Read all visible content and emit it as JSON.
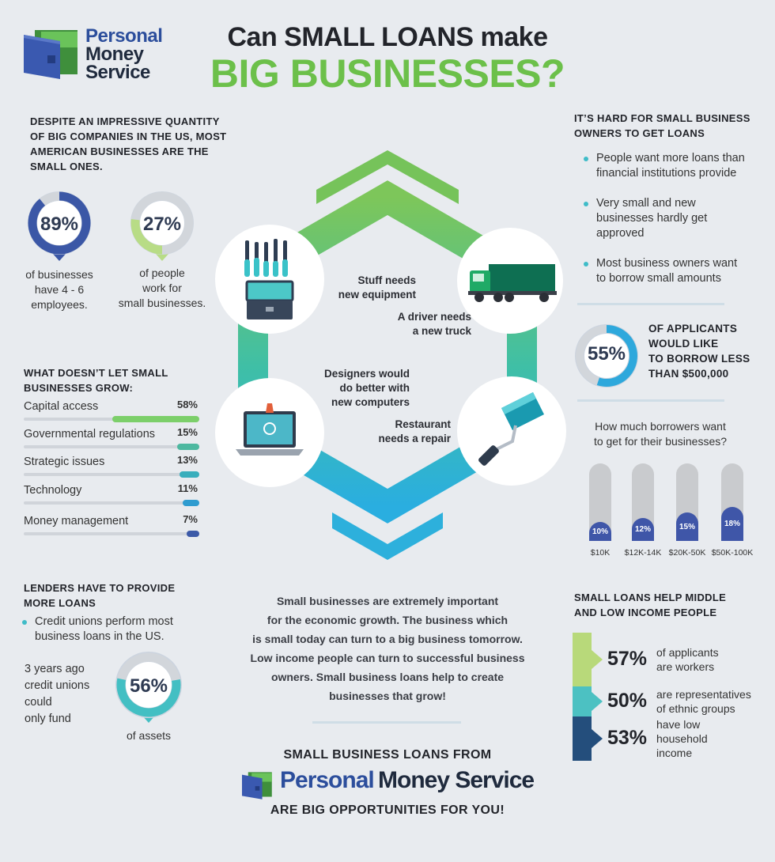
{
  "logo": {
    "line1": "Personal",
    "line2": "Money",
    "line3": "Service"
  },
  "title": {
    "line1": "Can SMALL LOANS make",
    "line2": "BIG BUSINESSES?"
  },
  "intro": {
    "heading": "DESPITE AN IMPRESSIVE QUANTITY OF BIG COMPANIES IN THE US, MOST AMERICAN BUSINESSES ARE THE SMALL ONES."
  },
  "stat89": {
    "value": "89%",
    "fraction": 0.89,
    "caption_l1": "of businesses",
    "caption_l2": "have 4 - 6",
    "caption_l3": "employees."
  },
  "stat27": {
    "value": "27%",
    "fraction": 0.27,
    "caption_l1": "of people",
    "caption_l2": "work for",
    "caption_l3": "small businesses."
  },
  "grow": {
    "heading": "WHAT DOESN’T LET SMALL BUSINESSES GROW:",
    "items": [
      {
        "label": "Capital access",
        "value": "58%",
        "fraction": 0.58,
        "color": "#7ccf6a"
      },
      {
        "label": "Governmental regulations",
        "value": "15%",
        "fraction": 0.15,
        "color": "#4db8a0"
      },
      {
        "label": "Strategic issues",
        "value": "13%",
        "fraction": 0.13,
        "color": "#39aebc"
      },
      {
        "label": "Technology",
        "value": "11%",
        "fraction": 0.11,
        "color": "#2f9cd0"
      },
      {
        "label": "Money management",
        "value": "7%",
        "fraction": 0.07,
        "color": "#3c5aa8"
      }
    ]
  },
  "lenders": {
    "heading_l1": "LENDERS HAVE TO PROVIDE",
    "heading_l2": "MORE LOANS",
    "bullet_l1": "Credit unions perform most",
    "bullet_l2": "business loans in the US.",
    "side_l1": "3 years ago",
    "side_l2": "credit unions",
    "side_l3": "could",
    "side_l4": "only fund",
    "value": "56%",
    "fraction": 0.56,
    "caption": "of assets"
  },
  "hex": {
    "equipment_l1": "Stuff needs",
    "equipment_l2": "new equipment",
    "truck_l1": "A driver needs",
    "truck_l2": "a new truck",
    "designers_l1": "Designers would",
    "designers_l2": "do better with",
    "designers_l3": "new computers",
    "restaurant_l1": "Restaurant",
    "restaurant_l2": "needs a repair"
  },
  "body_text": [
    "Small businesses are extremely important",
    "for the economic growth. The business which",
    "is small today can turn to a big business tomorrow.",
    "Low income people can turn to successful business",
    "owners. Small business loans help to create",
    "businesses that grow!"
  ],
  "footer": {
    "line1": "SMALL BUSINESS LOANS FROM",
    "brand_a": "Personal",
    "brand_b": "Money Service",
    "line3": "ARE BIG OPPORTUNITIES FOR YOU!"
  },
  "hard": {
    "heading_l1": "IT’S HARD FOR SMALL BUSINESS",
    "heading_l2": "OWNERS TO GET LOANS",
    "b1_l1": "People want more loans than",
    "b1_l2": "financial institutions provide",
    "b2_l1": "Very small and new",
    "b2_l2": "businesses hardly get",
    "b2_l3": "approved",
    "b3_l1": "Most business owners want",
    "b3_l2": "to borrow small amounts"
  },
  "stat55": {
    "value": "55%",
    "fraction": 0.55,
    "t1": "OF APPLICANTS",
    "t2": "WOULD LIKE",
    "t3": "TO BORROW LESS",
    "t4": "THAN $500,000"
  },
  "borrow": {
    "q_l1": "How much borrowers want",
    "q_l2": "to get for their businesses?",
    "items": [
      {
        "label": "$10K",
        "value": "10%",
        "fraction": 0.1
      },
      {
        "label": "$12K-14K",
        "value": "12%",
        "fraction": 0.12
      },
      {
        "label": "$20K-50K",
        "value": "15%",
        "fraction": 0.15
      },
      {
        "label": "$50K-100K",
        "value": "18%",
        "fraction": 0.18
      }
    ]
  },
  "income": {
    "heading_l1": "SMALL LOANS HELP MIDDLE",
    "heading_l2": "AND LOW INCOME PEOPLE",
    "items": [
      {
        "value": "57%",
        "l1": "of applicants",
        "l2": "are workers",
        "l3": "",
        "color": "#b8d97a"
      },
      {
        "value": "50%",
        "l1": "are representatives",
        "l2": "of ethnic groups",
        "l3": "",
        "color": "#4cc1c2"
      },
      {
        "value": "53%",
        "l1": "have low",
        "l2": "household",
        "l3": "income",
        "color": "#244e7c"
      }
    ]
  }
}
